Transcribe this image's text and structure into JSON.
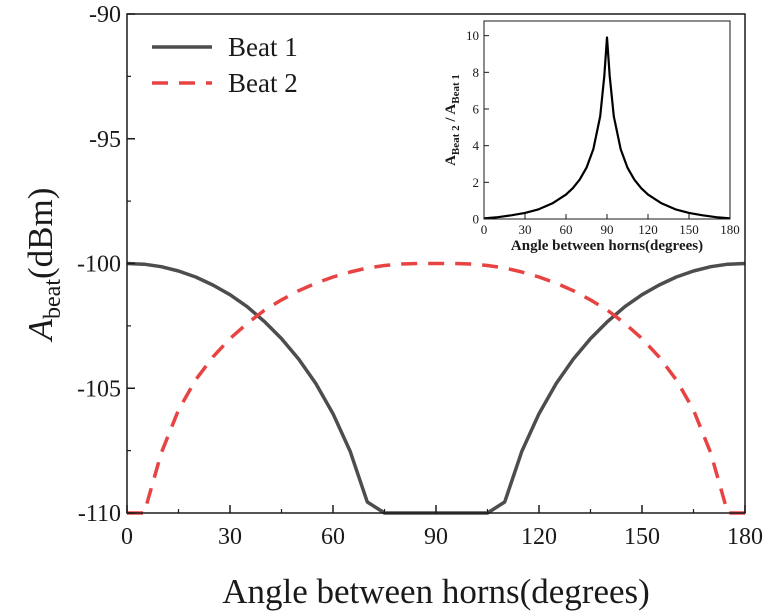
{
  "chart_data": [
    {
      "type": "line",
      "title": "",
      "xlabel": "Angle between horns(degrees)",
      "ylabel_main": "A",
      "ylabel_sub": "beat",
      "ylabel_unit": "(dBm)",
      "xlim": [
        0,
        180
      ],
      "ylim": [
        -110,
        -90
      ],
      "xticks": [
        0,
        30,
        60,
        90,
        120,
        150,
        180
      ],
      "yticks": [
        -90,
        -95,
        -100,
        -105,
        -110
      ],
      "legend_position": "top-left",
      "grid": false,
      "x": [
        0,
        5,
        10,
        15,
        20,
        25,
        30,
        35,
        40,
        45,
        50,
        55,
        60,
        65,
        70,
        75,
        80,
        85,
        90,
        95,
        100,
        105,
        110,
        115,
        120,
        125,
        130,
        135,
        140,
        145,
        150,
        155,
        160,
        165,
        170,
        175,
        180
      ],
      "series": [
        {
          "name": "Beat 1",
          "style": "solid",
          "color": "#4d4d4d",
          "values": [
            -100.0,
            -100.03,
            -100.13,
            -100.3,
            -100.54,
            -100.86,
            -101.25,
            -101.73,
            -102.32,
            -103.01,
            -103.83,
            -104.81,
            -106.02,
            -107.53,
            -109.56,
            -110,
            -110,
            -110,
            -110,
            -110,
            -110,
            -110,
            -109.56,
            -107.53,
            -106.02,
            -104.81,
            -103.83,
            -103.01,
            -102.32,
            -101.73,
            -101.25,
            -100.86,
            -100.54,
            -100.3,
            -100.13,
            -100.03,
            -100.0
          ]
        },
        {
          "name": "Beat 2",
          "style": "dashed",
          "color": "#e84343",
          "values": [
            -110,
            -110,
            -107.59,
            -105.87,
            -104.66,
            -103.75,
            -103.01,
            -102.4,
            -101.88,
            -101.46,
            -101.09,
            -100.79,
            -100.54,
            -100.34,
            -100.18,
            -100.08,
            -100.02,
            -100.0,
            -100.0,
            -100.0,
            -100.02,
            -100.08,
            -100.18,
            -100.34,
            -100.54,
            -100.79,
            -101.09,
            -101.46,
            -101.88,
            -102.4,
            -103.01,
            -103.75,
            -104.66,
            -105.87,
            -107.59,
            -110,
            -110
          ]
        }
      ]
    },
    {
      "type": "line",
      "title": "",
      "xlabel": "Angle between horns(degrees)",
      "ylabel_num": "A",
      "ylabel_num_sub": "Beat 2",
      "ylabel_sep": " / ",
      "ylabel_den": "A",
      "ylabel_den_sub": "Beat 1",
      "xlim": [
        0,
        180
      ],
      "ylim": [
        0,
        10.8
      ],
      "xticks": [
        0,
        30,
        60,
        90,
        120,
        150,
        180
      ],
      "yticks": [
        0,
        2,
        4,
        6,
        8,
        10
      ],
      "grid": false,
      "x": [
        0,
        10,
        20,
        30,
        40,
        50,
        60,
        65,
        70,
        75,
        80,
        85,
        88,
        90,
        92,
        95,
        100,
        105,
        110,
        115,
        120,
        130,
        140,
        150,
        160,
        170,
        180
      ],
      "series": [
        {
          "values": [
            0.03,
            0.1,
            0.2,
            0.33,
            0.53,
            0.85,
            1.33,
            1.68,
            2.15,
            2.8,
            3.8,
            5.6,
            7.8,
            9.9,
            7.8,
            5.6,
            3.8,
            2.8,
            2.15,
            1.68,
            1.33,
            0.85,
            0.53,
            0.33,
            0.2,
            0.1,
            0.03
          ]
        }
      ]
    }
  ]
}
